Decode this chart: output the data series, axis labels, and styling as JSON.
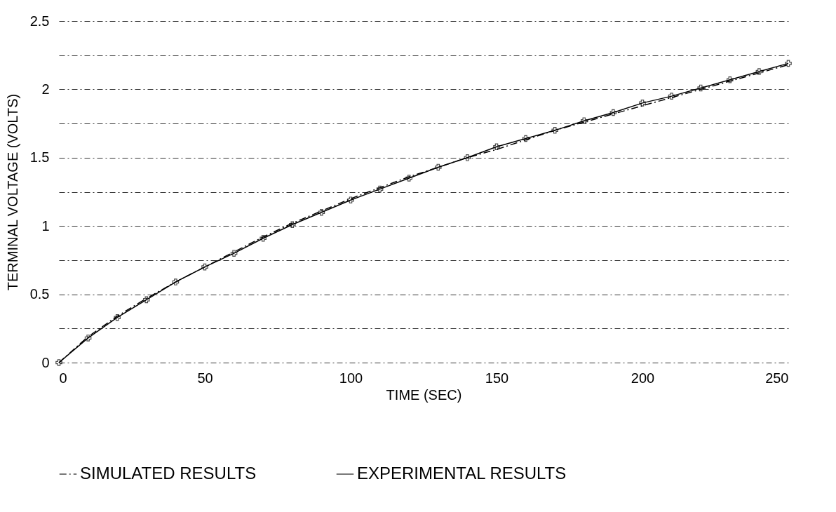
{
  "chart_data": {
    "type": "line",
    "xlabel": "TIME (SEC)",
    "ylabel": "TERMINAL VOLTAGE (VOLTS)",
    "x": [
      0,
      10,
      20,
      30,
      40,
      50,
      60,
      70,
      80,
      90,
      100,
      110,
      120,
      130,
      140,
      150,
      160,
      170,
      180,
      190,
      200,
      210,
      220,
      230,
      240,
      250
    ],
    "series": [
      {
        "name": "SIMULATED RESULTS",
        "color": "#000000",
        "line_style": "dashdot",
        "marker": "none",
        "values": [
          0,
          0.19,
          0.34,
          0.47,
          0.59,
          0.7,
          0.81,
          0.92,
          1.02,
          1.11,
          1.2,
          1.28,
          1.36,
          1.43,
          1.5,
          1.56,
          1.63,
          1.7,
          1.76,
          1.82,
          1.88,
          1.94,
          2.0,
          2.06,
          2.12,
          2.18
        ]
      },
      {
        "name": "EXPERIMENTAL RESULTS",
        "color": "#000000",
        "line_style": "solid",
        "marker": "cross",
        "values": [
          0,
          0.18,
          0.33,
          0.46,
          0.59,
          0.7,
          0.8,
          0.91,
          1.01,
          1.1,
          1.19,
          1.27,
          1.35,
          1.43,
          1.5,
          1.58,
          1.64,
          1.7,
          1.77,
          1.83,
          1.9,
          1.95,
          2.01,
          2.07,
          2.13,
          2.19
        ]
      }
    ],
    "xlim": [
      0,
      250
    ],
    "xticks": [
      0,
      50,
      100,
      150,
      200,
      250
    ],
    "ylim": [
      0,
      2.5
    ],
    "yticks": [
      0,
      {
        "value": 0.25,
        "label": null
      },
      0.5,
      {
        "value": 0.75,
        "label": null
      },
      1,
      {
        "value": 1.25,
        "label": null
      },
      1.5,
      {
        "value": 1.75,
        "label": null
      },
      2,
      {
        "value": 2.25,
        "label": null
      },
      2.5
    ],
    "grid": "y",
    "legend": "bottom"
  }
}
